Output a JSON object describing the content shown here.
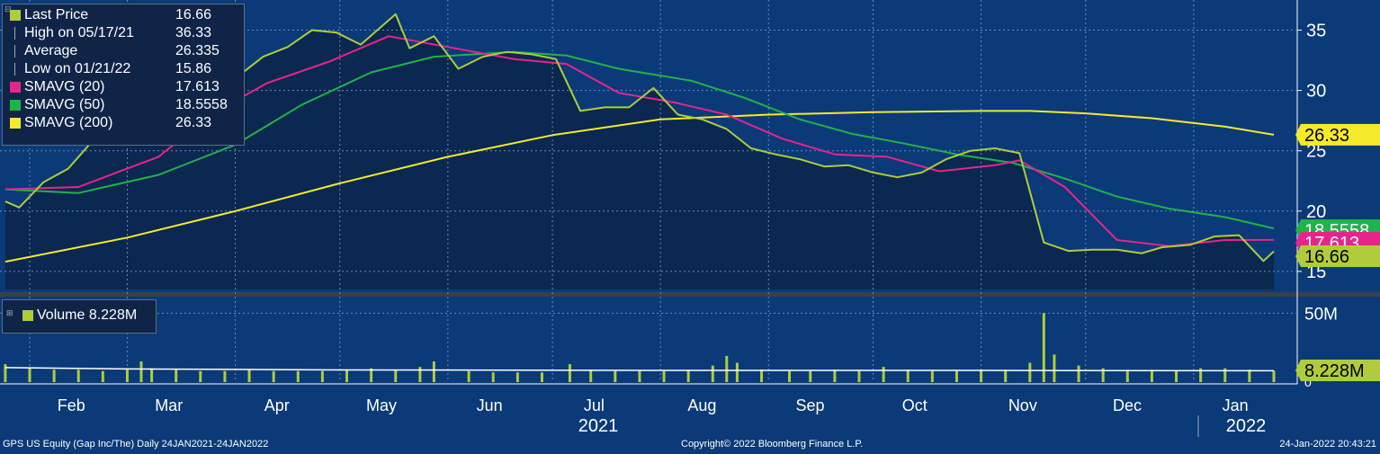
{
  "legend": {
    "rows": [
      {
        "label": "Last Price",
        "value": "16.66",
        "color": "#b0cc3a",
        "icon": "square"
      },
      {
        "label": "High on 05/17/21",
        "value": "36.33",
        "color": "#9aa0a8",
        "icon": "line"
      },
      {
        "label": "Average",
        "value": "26.335",
        "color": "#9aa0a8",
        "icon": "line"
      },
      {
        "label": "Low on 01/21/22",
        "value": "15.86",
        "color": "#9aa0a8",
        "icon": "line"
      },
      {
        "label": "SMAVG (20)",
        "value": "17.613",
        "color": "#e8248c",
        "icon": "square"
      },
      {
        "label": "SMAVG (50)",
        "value": "18.5558",
        "color": "#1fb34a",
        "icon": "square"
      },
      {
        "label": "SMAVG (200)",
        "value": "26.33",
        "color": "#f5ea2a",
        "icon": "square"
      }
    ]
  },
  "volume_legend": {
    "label": "Volume 8.228M"
  },
  "right_tags": [
    {
      "text": "26.33",
      "value": 26.33,
      "bg": "#f5ea2a",
      "fg": "#000000"
    },
    {
      "text": "18.5558",
      "value": 18.5558,
      "bg": "#1fb34a",
      "fg": "#ffffff"
    },
    {
      "text": "17.613",
      "value": 17.613,
      "bg": "#e8248c",
      "fg": "#ffffff"
    },
    {
      "text": "16.66",
      "value": 16.66,
      "bg": "#b0cc3a",
      "fg": "#000000"
    }
  ],
  "volume_tag": {
    "text": "8.228M",
    "value": 8.228
  },
  "footer": {
    "left": "GPS US Equity (Gap Inc/The)  Daily 24JAN2021-24JAN2022",
    "center": "Copyright© 2022 Bloomberg Finance L.P.",
    "right": "24-Jan-2022 20:43:21"
  },
  "colors": {
    "background": "#0b3a78",
    "area": "#0a2850",
    "price": "#b0cc3a",
    "sma20": "#e8248c",
    "sma50": "#1fb34a",
    "sma200": "#f5ea2a",
    "grid": "#6c8ab8"
  },
  "chart_data": [
    {
      "type": "line",
      "title": "",
      "ylim": [
        13.5,
        37.5
      ],
      "yticks": [
        15,
        20,
        25,
        30,
        35
      ],
      "x_month_labels": [
        "Feb",
        "Mar",
        "Apr",
        "May",
        "Jun",
        "Jul",
        "Aug",
        "Sep",
        "Oct",
        "Nov",
        "Dec",
        "Jan"
      ],
      "x_year_labels": [
        "2021",
        "2022"
      ],
      "x_range": [
        "2021-01-24",
        "2022-01-24"
      ],
      "series": [
        {
          "name": "Last Price",
          "x": [
            "2021-01-25",
            "2021-01-29",
            "2021-02-05",
            "2021-02-12",
            "2021-02-19",
            "2021-02-26",
            "2021-03-05",
            "2021-03-12",
            "2021-03-19",
            "2021-03-26",
            "2021-04-01",
            "2021-04-09",
            "2021-04-16",
            "2021-04-23",
            "2021-04-30",
            "2021-05-07",
            "2021-05-17",
            "2021-05-21",
            "2021-05-28",
            "2021-06-04",
            "2021-06-11",
            "2021-06-18",
            "2021-06-25",
            "2021-07-02",
            "2021-07-09",
            "2021-07-16",
            "2021-07-23",
            "2021-07-30",
            "2021-08-06",
            "2021-08-13",
            "2021-08-20",
            "2021-08-27",
            "2021-09-03",
            "2021-09-10",
            "2021-09-17",
            "2021-09-24",
            "2021-10-01",
            "2021-10-08",
            "2021-10-15",
            "2021-10-22",
            "2021-10-29",
            "2021-11-05",
            "2021-11-12",
            "2021-11-19",
            "2021-11-26",
            "2021-12-03",
            "2021-12-10",
            "2021-12-17",
            "2021-12-23",
            "2021-12-31",
            "2022-01-07",
            "2022-01-14",
            "2022-01-21",
            "2022-01-24"
          ],
          "values": [
            20.8,
            20.3,
            22.4,
            23.5,
            25.8,
            26.2,
            29.0,
            31.5,
            29.5,
            30.5,
            31.0,
            32.8,
            33.6,
            35.0,
            34.8,
            33.8,
            36.33,
            33.5,
            34.5,
            31.8,
            32.8,
            33.2,
            33.0,
            32.6,
            28.3,
            28.6,
            28.6,
            30.2,
            28.0,
            27.6,
            26.8,
            25.2,
            24.7,
            24.3,
            23.7,
            23.8,
            23.2,
            22.8,
            23.2,
            24.3,
            25.0,
            25.2,
            24.8,
            17.4,
            16.7,
            16.8,
            16.8,
            16.5,
            17.0,
            17.2,
            17.9,
            18.0,
            15.86,
            16.66
          ]
        },
        {
          "name": "SMAVG (20)",
          "x": [
            "2021-01-25",
            "2021-02-15",
            "2021-03-10",
            "2021-03-25",
            "2021-04-10",
            "2021-04-28",
            "2021-05-15",
            "2021-06-01",
            "2021-06-20",
            "2021-07-05",
            "2021-07-20",
            "2021-08-05",
            "2021-08-20",
            "2021-09-05",
            "2021-09-20",
            "2021-10-05",
            "2021-10-20",
            "2021-11-05",
            "2021-11-12",
            "2021-11-25",
            "2021-12-10",
            "2021-12-25",
            "2022-01-10",
            "2022-01-24"
          ],
          "values": [
            21.8,
            22.0,
            24.5,
            28.0,
            30.6,
            32.4,
            34.5,
            33.6,
            32.6,
            32.2,
            29.8,
            29.0,
            28.0,
            26.0,
            24.7,
            24.5,
            23.3,
            23.8,
            24.2,
            22.0,
            17.6,
            17.1,
            17.6,
            17.61
          ]
        },
        {
          "name": "SMAVG (50)",
          "x": [
            "2021-01-25",
            "2021-02-15",
            "2021-03-10",
            "2021-04-01",
            "2021-04-20",
            "2021-05-10",
            "2021-05-28",
            "2021-06-20",
            "2021-07-05",
            "2021-07-20",
            "2021-08-10",
            "2021-08-25",
            "2021-09-10",
            "2021-09-25",
            "2021-10-10",
            "2021-10-25",
            "2021-11-10",
            "2021-11-25",
            "2021-12-10",
            "2021-12-25",
            "2022-01-10",
            "2022-01-24"
          ],
          "values": [
            21.8,
            21.5,
            23.0,
            25.5,
            28.8,
            31.5,
            32.8,
            33.2,
            32.9,
            31.8,
            30.8,
            29.4,
            27.6,
            26.4,
            25.6,
            24.7,
            24.0,
            22.7,
            21.2,
            20.2,
            19.5,
            18.56
          ]
        },
        {
          "name": "SMAVG (200)",
          "x": [
            "2021-01-25",
            "2021-03-01",
            "2021-04-01",
            "2021-05-01",
            "2021-06-01",
            "2021-07-01",
            "2021-08-01",
            "2021-09-01",
            "2021-10-01",
            "2021-11-01",
            "2021-11-15",
            "2021-12-01",
            "2021-12-20",
            "2022-01-10",
            "2022-01-24"
          ],
          "values": [
            15.8,
            17.8,
            20.0,
            22.3,
            24.5,
            26.3,
            27.6,
            28.0,
            28.2,
            28.3,
            28.3,
            28.1,
            27.7,
            27.0,
            26.33
          ]
        }
      ]
    },
    {
      "type": "bar",
      "title": "",
      "series_name": "Volume",
      "ylim": [
        0,
        60
      ],
      "yticks": [
        50
      ],
      "ytick_labels": [
        "50M"
      ],
      "x_range": [
        "2021-01-24",
        "2022-01-24"
      ],
      "average_line": {
        "x": [
          "2021-01-25",
          "2021-03-01",
          "2021-05-01",
          "2021-08-01",
          "2021-11-01",
          "2022-01-24"
        ],
        "values": [
          10.5,
          9.5,
          8.8,
          8.5,
          8.5,
          8.23
        ]
      },
      "x": [
        "2021-01-25",
        "2021-02-01",
        "2021-02-08",
        "2021-02-15",
        "2021-02-22",
        "2021-03-01",
        "2021-03-05",
        "2021-03-08",
        "2021-03-15",
        "2021-03-22",
        "2021-03-29",
        "2021-04-05",
        "2021-04-12",
        "2021-04-19",
        "2021-04-26",
        "2021-05-03",
        "2021-05-10",
        "2021-05-17",
        "2021-05-24",
        "2021-05-28",
        "2021-06-07",
        "2021-06-14",
        "2021-06-21",
        "2021-06-28",
        "2021-07-06",
        "2021-07-12",
        "2021-07-19",
        "2021-07-26",
        "2021-08-02",
        "2021-08-09",
        "2021-08-16",
        "2021-08-20",
        "2021-08-23",
        "2021-08-30",
        "2021-09-07",
        "2021-09-13",
        "2021-09-20",
        "2021-09-27",
        "2021-10-04",
        "2021-10-11",
        "2021-10-18",
        "2021-10-25",
        "2021-11-01",
        "2021-11-08",
        "2021-11-15",
        "2021-11-19",
        "2021-11-22",
        "2021-11-29",
        "2021-12-06",
        "2021-12-13",
        "2021-12-20",
        "2021-12-27",
        "2022-01-03",
        "2022-01-10",
        "2022-01-17",
        "2022-01-24"
      ],
      "values": [
        13,
        10,
        9,
        9,
        8,
        9,
        15,
        10,
        9,
        8,
        8,
        9,
        8,
        8,
        8,
        9,
        10,
        9,
        11,
        15,
        8,
        7,
        7,
        7,
        13,
        9,
        8,
        8,
        8,
        9,
        12,
        19,
        14,
        9,
        8,
        8,
        9,
        8,
        11,
        9,
        8,
        8,
        9,
        9,
        14,
        50,
        20,
        12,
        10,
        9,
        9,
        8,
        10,
        10,
        9,
        8.228
      ]
    }
  ]
}
